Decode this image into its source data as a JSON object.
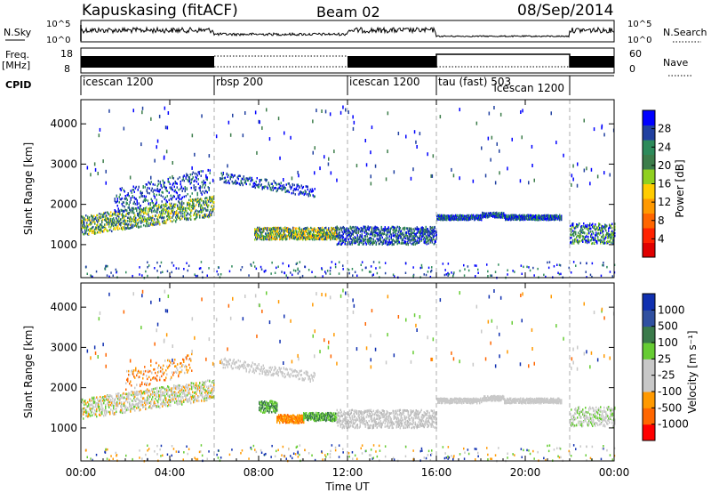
{
  "header": {
    "station": "Kapuskasing (fitACF)",
    "beam": "Beam 02",
    "date": "08/Sep/2014"
  },
  "summary_panels": {
    "nsky_label": "N.Sky",
    "nsky_ticks": [
      "10^5",
      "10^0"
    ],
    "nsearch_label": "N.Search",
    "nsearch_ticks": [
      "10^5",
      "10^0"
    ],
    "freq_label_1": "Freq.",
    "freq_label_2": "[MHz]",
    "freq_ticks": [
      "18",
      "8"
    ],
    "nave_label": "Nave",
    "nave_ticks": [
      "60",
      "0"
    ],
    "cpid_label": "CPID"
  },
  "cpid_segments": [
    {
      "name": "icescan 1200",
      "start": 0,
      "end": 6
    },
    {
      "name": "rbsp 200",
      "start": 6,
      "end": 12
    },
    {
      "name": "icescan 1200",
      "start": 12,
      "end": 16
    },
    {
      "name": "tau (fast) 503",
      "start": 16,
      "end": 22
    },
    {
      "name": "icescan 1200",
      "start": 18.5,
      "end": 22
    }
  ],
  "colors": {
    "power": [
      "#0000ff",
      "#2040a0",
      "#2d8a5a",
      "#3c7d4a",
      "#90d020",
      "#ffcc00",
      "#ff9900",
      "#ff6600",
      "#ff2200",
      "#e00000"
    ],
    "velocity": [
      "#1030b0",
      "#3050a0",
      "#3a7a4a",
      "#66cc33",
      "#c8c8c8",
      "#c8c8c8",
      "#ff9900",
      "#ff6600",
      "#ff0000"
    ]
  },
  "chart_data": [
    {
      "type": "heatmap",
      "title": "",
      "xlabel": "Time UT",
      "ylabel": "Slant Range [km]",
      "x_ticks": [
        "00:00",
        "04:00",
        "08:00",
        "12:00",
        "16:00",
        "20:00",
        "00:00"
      ],
      "xlim": [
        0,
        24
      ],
      "y_ticks": [
        "1000",
        "2000",
        "3000",
        "4000"
      ],
      "y_tick_values": [
        1000,
        2000,
        3000,
        4000
      ],
      "ylim": [
        180,
        4600
      ],
      "colorbar_label": "Power [dB]",
      "colorbar_ticks": [
        "4",
        "8",
        "12",
        "16",
        "20",
        "24",
        "28"
      ],
      "colorbar_range": [
        0,
        30
      ]
    },
    {
      "type": "heatmap",
      "title": "",
      "xlabel": "Time UT",
      "ylabel": "Slant Range [km]",
      "x_ticks": [
        "00:00",
        "04:00",
        "08:00",
        "12:00",
        "16:00",
        "20:00",
        "00:00"
      ],
      "xlim": [
        0,
        24
      ],
      "y_ticks": [
        "1000",
        "2000",
        "3000",
        "4000"
      ],
      "y_tick_values": [
        1000,
        2000,
        3000,
        4000
      ],
      "ylim": [
        180,
        4600
      ],
      "colorbar_label": "Velocity [m s⁻¹]",
      "colorbar_ticks": [
        "1000",
        "500",
        "100",
        "25",
        "-25",
        "-100",
        "-500",
        "-1000"
      ]
    }
  ]
}
